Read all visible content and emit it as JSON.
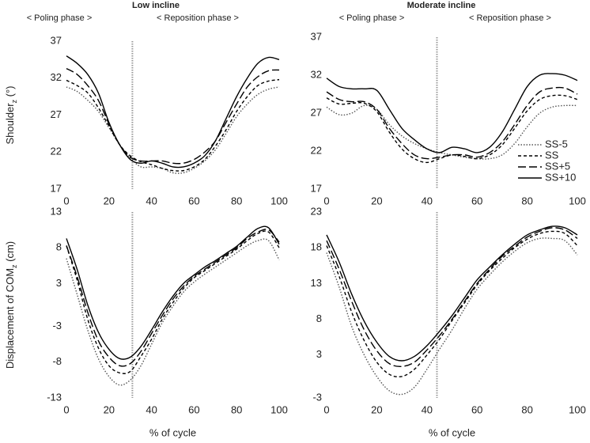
{
  "chart_data": [
    {
      "type": "line",
      "title": "Low incline",
      "annotations": [
        "< Poling phase >",
        "< Reposition phase >"
      ],
      "y_label": [
        "Shoulder",
        "z",
        " (°)"
      ],
      "phase_boundary": 31,
      "x": [
        0,
        5,
        10,
        15,
        20,
        25,
        30,
        35,
        40,
        45,
        50,
        55,
        60,
        65,
        70,
        75,
        80,
        85,
        90,
        95,
        100
      ],
      "xlim": [
        0,
        100
      ],
      "xticks": [
        0,
        20,
        40,
        60,
        80,
        100
      ],
      "ylim": [
        17,
        37
      ],
      "yticks": [
        17,
        22,
        27,
        32,
        37
      ],
      "series": [
        {
          "name": "SS-5",
          "color": "#555555",
          "style": "dotted",
          "values": [
            30.8,
            30.2,
            29,
            27.5,
            25.3,
            23,
            21.2,
            20,
            20,
            19.8,
            19.2,
            19.2,
            19.8,
            20.8,
            22.3,
            24.5,
            26.8,
            28.5,
            29.8,
            30.5,
            30.8
          ]
        },
        {
          "name": "SS",
          "color": "#000000",
          "style": "short-dash",
          "values": [
            31.7,
            31,
            30,
            28,
            25.5,
            23,
            21.5,
            20.7,
            20.3,
            19.8,
            19.5,
            19.5,
            20,
            21,
            22.8,
            25,
            27.5,
            29.5,
            31,
            31.6,
            31.8
          ]
        },
        {
          "name": "SS+5",
          "color": "#000000",
          "style": "long-dash",
          "values": [
            33.3,
            32.5,
            31,
            29,
            25.8,
            23,
            21.3,
            20.8,
            20.8,
            20.8,
            20.5,
            20.5,
            21,
            22,
            23.5,
            26,
            28.5,
            30.8,
            32.2,
            33,
            33.1
          ]
        },
        {
          "name": "SS+10",
          "color": "#000000",
          "style": "solid",
          "values": [
            35,
            34,
            32.5,
            30,
            26,
            23,
            21,
            20.5,
            20.8,
            20.5,
            20,
            20,
            20.5,
            21.5,
            23.5,
            26.5,
            29.5,
            32,
            34,
            34.8,
            34.5
          ]
        }
      ]
    },
    {
      "type": "line",
      "title": "Moderate incline",
      "annotations": [
        "< Poling phase >",
        "< Reposition phase >"
      ],
      "phase_boundary": 44,
      "legend": "right",
      "x": [
        0,
        5,
        10,
        15,
        20,
        25,
        30,
        35,
        40,
        45,
        50,
        55,
        60,
        65,
        70,
        75,
        80,
        85,
        90,
        95,
        100
      ],
      "xlim": [
        0,
        100
      ],
      "xticks": [
        0,
        20,
        40,
        60,
        80,
        100
      ],
      "ylim": [
        17,
        37
      ],
      "yticks": [
        17,
        22,
        27,
        32,
        37
      ],
      "series": [
        {
          "name": "SS-5",
          "color": "#555555",
          "style": "dotted",
          "values": [
            27.8,
            26.8,
            27,
            28,
            27.5,
            25.5,
            24,
            23,
            22.3,
            21.8,
            21.5,
            21.2,
            21,
            21,
            21.5,
            23,
            25.2,
            27,
            27.8,
            28,
            28
          ]
        },
        {
          "name": "SS",
          "color": "#000000",
          "style": "short-dash",
          "values": [
            29,
            28.2,
            28.3,
            28.3,
            27.2,
            24.5,
            22.3,
            21,
            20.5,
            21,
            21.5,
            21.3,
            21,
            21.5,
            22.8,
            25,
            27.3,
            28.8,
            29.3,
            29.3,
            28.8
          ]
        },
        {
          "name": "SS+5",
          "color": "#000000",
          "style": "long-dash",
          "values": [
            29.8,
            28.8,
            28.5,
            28.5,
            27.5,
            25,
            23,
            21.5,
            21,
            21.2,
            21.5,
            21.5,
            21.2,
            21.8,
            23.2,
            25.5,
            28,
            29.8,
            30.3,
            30.3,
            29.5
          ]
        },
        {
          "name": "SS+10",
          "color": "#000000",
          "style": "solid",
          "values": [
            31.6,
            30.5,
            30.2,
            30.2,
            30,
            27.5,
            25,
            23.5,
            22.3,
            21.8,
            22.5,
            22.3,
            21.8,
            22.5,
            24.5,
            27.5,
            30.5,
            32,
            32.2,
            32,
            31.3
          ]
        }
      ]
    },
    {
      "type": "line",
      "x_label": "% of cycle",
      "y_label": [
        "Displacement of COM",
        "z",
        " (cm)"
      ],
      "phase_boundary": 31,
      "x": [
        0,
        5,
        10,
        15,
        20,
        25,
        30,
        35,
        40,
        45,
        50,
        55,
        60,
        65,
        70,
        75,
        80,
        85,
        90,
        95,
        100
      ],
      "xlim": [
        0,
        100
      ],
      "xticks": [
        0,
        20,
        40,
        60,
        80,
        100
      ],
      "ylim": [
        -13,
        13
      ],
      "yticks": [
        -13,
        -8,
        -3,
        3,
        8,
        13
      ],
      "series": [
        {
          "name": "SS-5",
          "color": "#555555",
          "style": "dotted",
          "values": [
            6.5,
            1.5,
            -3.5,
            -7.5,
            -10,
            -11.2,
            -10.5,
            -8.5,
            -5.5,
            -2.5,
            -0.2,
            1.8,
            3.2,
            4.3,
            5.3,
            6.3,
            7.3,
            8.3,
            9,
            9,
            6.3
          ]
        },
        {
          "name": "SS",
          "color": "#000000",
          "style": "short-dash",
          "values": [
            8.3,
            3.5,
            -2,
            -6,
            -8.5,
            -9.5,
            -9.3,
            -7.2,
            -4.8,
            -2,
            0.3,
            2.3,
            3.8,
            4.8,
            5.8,
            6.8,
            7.8,
            9,
            10,
            10.2,
            8
          ]
        },
        {
          "name": "SS+5",
          "color": "#000000",
          "style": "long-dash",
          "values": [
            8.3,
            4,
            -1,
            -5,
            -7.3,
            -8.5,
            -8.2,
            -6.5,
            -4,
            -1.5,
            0.8,
            2.6,
            4,
            5,
            6,
            7,
            8,
            9.3,
            10.2,
            10.5,
            8.8
          ]
        },
        {
          "name": "SS+10",
          "color": "#000000",
          "style": "solid",
          "values": [
            9.3,
            5,
            0,
            -3.8,
            -6.2,
            -7.5,
            -7.3,
            -5.8,
            -3.5,
            -1,
            1.2,
            3,
            4.2,
            5.3,
            6.2,
            7.2,
            8.2,
            9.5,
            10.7,
            10.8,
            8.5
          ]
        }
      ]
    },
    {
      "type": "line",
      "x_label": "% of cycle",
      "phase_boundary": 44,
      "x": [
        0,
        5,
        10,
        15,
        20,
        25,
        30,
        35,
        40,
        45,
        50,
        55,
        60,
        65,
        70,
        75,
        80,
        85,
        90,
        95,
        100
      ],
      "xlim": [
        0,
        100
      ],
      "xticks": [
        0,
        20,
        40,
        60,
        80,
        100
      ],
      "ylim": [
        -3,
        23
      ],
      "yticks": [
        -3,
        3,
        8,
        13,
        18,
        23
      ],
      "series": [
        {
          "name": "SS-5",
          "color": "#555555",
          "style": "dotted",
          "values": [
            17.3,
            12.5,
            7,
            3,
            0,
            -2,
            -2.5,
            -1.5,
            1,
            3.8,
            6.5,
            9.5,
            12.2,
            14.2,
            16,
            17.5,
            18.7,
            19.3,
            19.3,
            19,
            17
          ]
        },
        {
          "name": "SS",
          "color": "#000000",
          "style": "short-dash",
          "values": [
            18.3,
            14,
            9,
            5,
            2,
            0.3,
            0,
            1,
            3,
            5.2,
            7.8,
            10.3,
            12.8,
            14.8,
            16.5,
            18,
            19.2,
            20,
            20.3,
            20,
            18.3
          ]
        },
        {
          "name": "SS+5",
          "color": "#000000",
          "style": "long-dash",
          "values": [
            19,
            15,
            10.5,
            6.5,
            3.6,
            1.8,
            1.4,
            2,
            3.7,
            5.7,
            8,
            10.5,
            13,
            15,
            16.8,
            18.2,
            19.5,
            20.3,
            20.8,
            20.5,
            19.3
          ]
        },
        {
          "name": "SS+10",
          "color": "#000000",
          "style": "solid",
          "values": [
            19.8,
            16,
            11.5,
            7.7,
            4.8,
            2.8,
            2.2,
            2.8,
            4.3,
            6.3,
            8.5,
            11,
            13.5,
            15.3,
            17,
            18.5,
            19.8,
            20.5,
            21,
            20.8,
            19.8
          ]
        }
      ]
    }
  ]
}
